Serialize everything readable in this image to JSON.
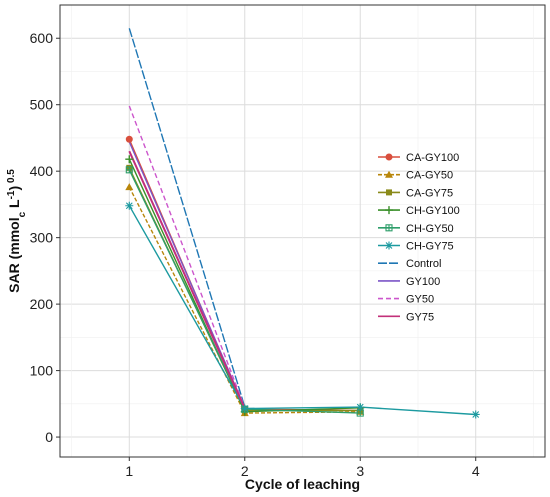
{
  "chart_data": {
    "type": "line",
    "title": "",
    "xlabel": "Cycle of leaching",
    "ylabel_parts": {
      "main": "SAR (mmol",
      "sub": "c",
      "mid": " L",
      "sup": "-1",
      "end": ")",
      "sup2": "0.5"
    },
    "x": [
      1,
      2,
      3,
      4
    ],
    "xlim": [
      0.4,
      4.6
    ],
    "ylim": [
      -30,
      650
    ],
    "yticks": [
      0,
      100,
      200,
      300,
      400,
      500,
      600
    ],
    "grid": true,
    "legend_position": "right",
    "series": [
      {
        "name": "CA-GY100",
        "color": "#d94f3d",
        "marker": "circle",
        "values": [
          448,
          42,
          40,
          null
        ]
      },
      {
        "name": "CA-GY50",
        "color": "#b8860b",
        "marker": "triangle",
        "values": [
          376,
          36,
          38,
          null
        ]
      },
      {
        "name": "CA-GY75",
        "color": "#8a8a1a",
        "marker": "square",
        "values": [
          405,
          40,
          40,
          null
        ]
      },
      {
        "name": "CH-GY100",
        "color": "#3a8f2a",
        "marker": "plus",
        "values": [
          418,
          38,
          44,
          null
        ]
      },
      {
        "name": "CH-GY50",
        "color": "#2e9e6a",
        "marker": "square-cross",
        "values": [
          402,
          42,
          36,
          null
        ]
      },
      {
        "name": "CH-GY75",
        "color": "#1c9aa0",
        "marker": "asterisk",
        "values": [
          348,
          43,
          45,
          34
        ]
      },
      {
        "name": "Control",
        "color": "#1f77b4",
        "marker": "none",
        "values": [
          615,
          45,
          null,
          null
        ]
      },
      {
        "name": "GY100",
        "color": "#7b55c7",
        "marker": "none",
        "values": [
          444,
          44,
          null,
          null
        ]
      },
      {
        "name": "GY50",
        "color": "#cc55cc",
        "marker": "none",
        "values": [
          498,
          44,
          null,
          null
        ]
      },
      {
        "name": "GY75",
        "color": "#c2307a",
        "marker": "none",
        "values": [
          430,
          43,
          null,
          null
        ]
      }
    ]
  }
}
